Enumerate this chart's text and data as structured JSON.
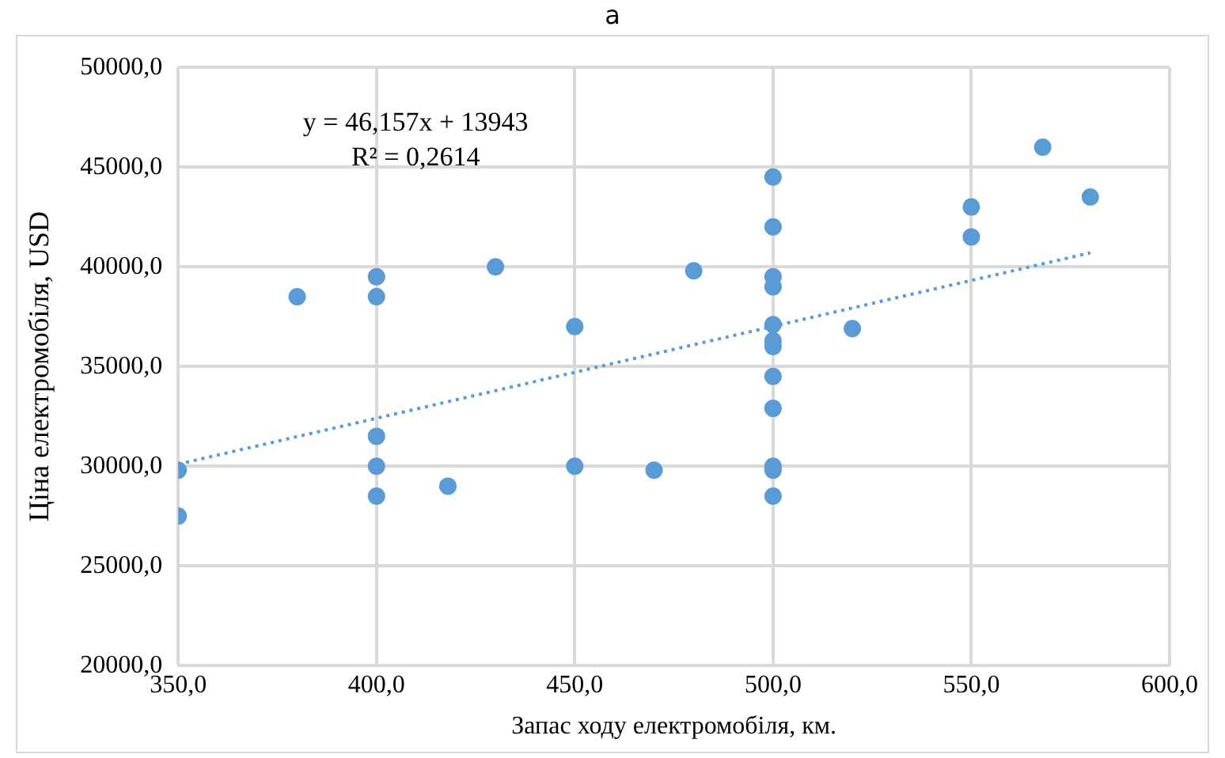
{
  "chart_data": {
    "type": "scatter",
    "title": "a",
    "xlabel": "Запас ходу електромобіля, км.",
    "ylabel": "Ціна електромобіля, USD",
    "series": [
      {
        "color": "#5b9bd5",
        "x": [
          350,
          350,
          380,
          400,
          400,
          400,
          400,
          400,
          418,
          430,
          450,
          450,
          470,
          480,
          500,
          500,
          500,
          500,
          500,
          500,
          500,
          500,
          500,
          500,
          500,
          500,
          520,
          550,
          550,
          568,
          580
        ],
        "values": [
          29800,
          27500,
          38500,
          39500,
          38500,
          31500,
          30000,
          28500,
          29000,
          40000,
          37000,
          30000,
          29800,
          39800,
          44500,
          42000,
          39500,
          39000,
          37100,
          36300,
          36000,
          34500,
          32900,
          30000,
          29800,
          28500,
          36900,
          43000,
          41500,
          46000,
          43500
        ]
      },
      {
        "type": "line",
        "color": "#5b9bd5",
        "line_style": "dotted",
        "marker": "none",
        "x": [
          350,
          580
        ],
        "values": [
          30100,
          40700
        ]
      }
    ],
    "annotations": [
      "y = 46,157x + 13943",
      "R² = 0,2614"
    ],
    "xlim": [
      350,
      600
    ],
    "xticks": [
      {
        "value": 350,
        "label": "350,0"
      },
      {
        "value": 400,
        "label": "400,0"
      },
      {
        "value": 450,
        "label": "450,0"
      },
      {
        "value": 500,
        "label": "500,0"
      },
      {
        "value": 550,
        "label": "550,0"
      },
      {
        "value": 600,
        "label": "600,0"
      }
    ],
    "ylim": [
      20000,
      50000
    ],
    "yticks": [
      {
        "value": 20000,
        "label": "20000,0"
      },
      {
        "value": 25000,
        "label": "25000,0"
      },
      {
        "value": 30000,
        "label": "30000,0"
      },
      {
        "value": 35000,
        "label": "35000,0"
      },
      {
        "value": 40000,
        "label": "40000,0"
      },
      {
        "value": 45000,
        "label": "45000,0"
      },
      {
        "value": 50000,
        "label": "50000,0"
      }
    ],
    "grid": true,
    "marker": "circle",
    "legend": false
  }
}
